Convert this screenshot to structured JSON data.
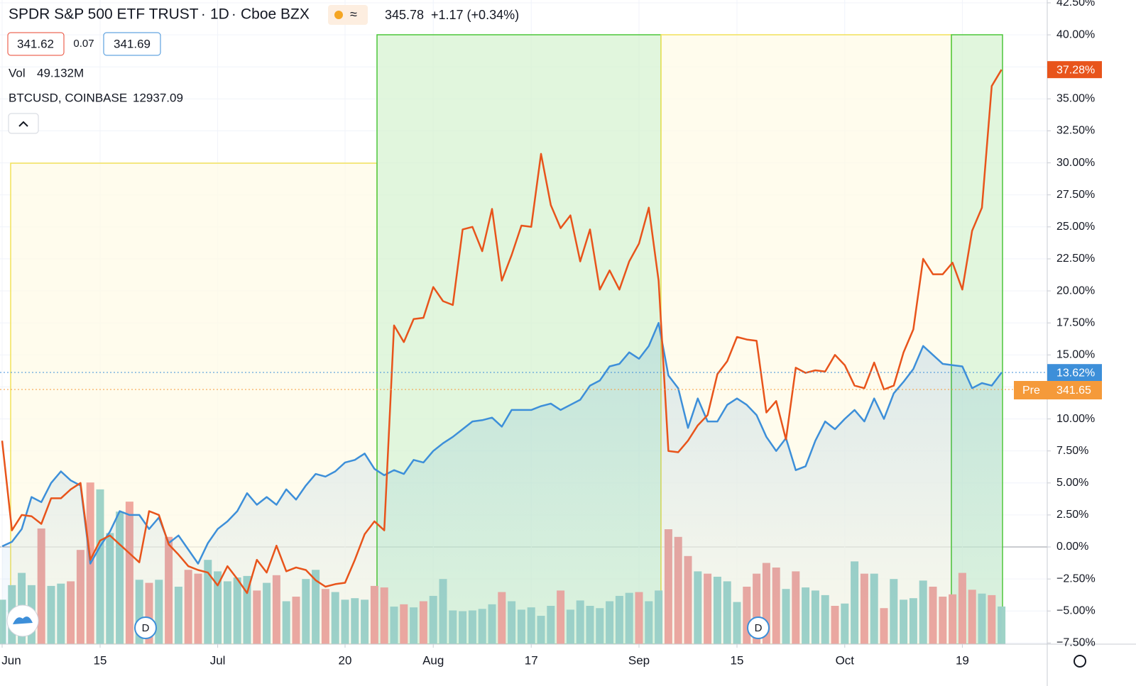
{
  "header": {
    "title": "SPDR S&P 500 ETF TRUST",
    "interval": "1D",
    "exchange": "Cboe BZX",
    "last": "345.78",
    "change": "+1.17 (+0.34%)",
    "bid": "341.62",
    "spread": "0.07",
    "ask": "341.69",
    "vol_label": "Vol",
    "vol_value": "49.132M",
    "compare_symbol": "BTCUSD, COINBASE",
    "compare_value": "12937.09",
    "pre_label": "Pre",
    "pre_value": "341.65"
  },
  "chart_data": {
    "type": "line",
    "series": [
      {
        "name": "SPDR S&P 500 ETF TRUST",
        "color": "#3d8fd9",
        "last_value_label": "13.62%",
        "values": [
          0.05,
          0.4,
          1.4,
          3.9,
          3.5,
          5.0,
          5.9,
          5.2,
          4.8,
          -1.3,
          0.05,
          1.2,
          2.8,
          2.5,
          2.5,
          1.4,
          2.3,
          0.3,
          0.9,
          -0.2,
          -1.3,
          0.3,
          1.4,
          2.0,
          2.8,
          4.2,
          3.3,
          3.9,
          3.3,
          4.5,
          3.7,
          4.8,
          5.7,
          5.5,
          5.9,
          6.6,
          6.8,
          7.3,
          6.1,
          5.6,
          6.0,
          5.7,
          6.8,
          6.6,
          7.5,
          8.1,
          8.6,
          9.2,
          9.8,
          9.9,
          10.1,
          9.4,
          10.7,
          10.7,
          10.7,
          11.0,
          11.2,
          10.7,
          11.1,
          11.5,
          12.6,
          13.0,
          14.1,
          14.3,
          15.2,
          14.7,
          15.7,
          17.5,
          13.4,
          12.4,
          9.3,
          11.6,
          9.8,
          9.8,
          11.1,
          11.6,
          11.1,
          10.3,
          8.6,
          7.5,
          8.5,
          6.0,
          6.3,
          8.3,
          9.8,
          9.2,
          10.0,
          10.7,
          9.8,
          11.6,
          10.0,
          12.0,
          12.9,
          13.9,
          15.7,
          15.0,
          14.3,
          14.2,
          14.1,
          12.4,
          12.8,
          12.6,
          13.62
        ]
      },
      {
        "name": "BTCUSD, COINBASE",
        "color": "#e8541b",
        "last_value_label": "37.28%",
        "values": [
          8.3,
          1.3,
          2.5,
          2.4,
          1.8,
          3.8,
          3.8,
          4.5,
          5.0,
          -1.0,
          0.5,
          0.9,
          0.2,
          -0.5,
          -1.2,
          2.8,
          2.5,
          0.2,
          -0.6,
          -1.5,
          -1.8,
          -2.0,
          -3.0,
          -1.5,
          -2.5,
          -3.6,
          -1.0,
          -2.0,
          0.1,
          -1.9,
          -1.6,
          -1.8,
          -2.6,
          -3.1,
          -2.9,
          -2.8,
          -1.0,
          1.0,
          2.0,
          1.3,
          17.3,
          16.0,
          17.8,
          17.9,
          20.3,
          19.2,
          18.9,
          24.8,
          25.0,
          23.1,
          26.4,
          20.8,
          22.8,
          25.1,
          25.0,
          30.7,
          26.7,
          24.9,
          25.9,
          22.3,
          24.8,
          20.1,
          21.6,
          20.1,
          22.3,
          23.7,
          26.5,
          20.8,
          7.5,
          7.4,
          8.3,
          9.5,
          10.3,
          13.5,
          14.5,
          16.4,
          16.2,
          16.1,
          10.5,
          11.4,
          8.4,
          14.0,
          13.6,
          13.8,
          13.7,
          15.0,
          14.2,
          12.6,
          12.4,
          14.4,
          12.3,
          12.6,
          15.2,
          17.0,
          22.5,
          21.3,
          21.3,
          22.2,
          20.1,
          24.7,
          26.5,
          36.0,
          37.28
        ]
      }
    ],
    "volume": {
      "name": "Vol",
      "up_color": "#9fd3c7",
      "down_color": "#f0a89e",
      "values": [
        58,
        77,
        93,
        77,
        151,
        76,
        79,
        82,
        123,
        211,
        202,
        145,
        173,
        186,
        84,
        80,
        84,
        140,
        75,
        97,
        92,
        110,
        95,
        82,
        87,
        89,
        70,
        80,
        90,
        56,
        62,
        85,
        97,
        72,
        68,
        58,
        60,
        58,
        76,
        74,
        49,
        52,
        48,
        56,
        63,
        85,
        44,
        43,
        44,
        46,
        52,
        68,
        56,
        45,
        48,
        37,
        50,
        70,
        45,
        57,
        50,
        47,
        56,
        63,
        67,
        68,
        56,
        70,
        150,
        140,
        115,
        95,
        92,
        88,
        82,
        55,
        75,
        92,
        106,
        100,
        72,
        95,
        74,
        70,
        64,
        50,
        53,
        108,
        92,
        92,
        47,
        85,
        58,
        60,
        83,
        75,
        62,
        65,
        93,
        71,
        66,
        64,
        49.132
      ]
    },
    "ylim": [
      -7.59,
      42.72
    ],
    "yticks": [
      {
        "value": -7.5,
        "label": "−7.50%"
      },
      {
        "value": -5,
        "label": "−5.00%"
      },
      {
        "value": -2.5,
        "label": "−2.50%"
      },
      {
        "value": 0,
        "label": "0.00%"
      },
      {
        "value": 2.5,
        "label": "2.50%"
      },
      {
        "value": 5,
        "label": "5.00%"
      },
      {
        "value": 7.5,
        "label": "7.50%"
      },
      {
        "value": 10,
        "label": "10.00%"
      },
      {
        "value": 12.5,
        "label": "12.50%"
      },
      {
        "value": 15,
        "label": "15.00%"
      },
      {
        "value": 17.5,
        "label": "17.50%"
      },
      {
        "value": 20,
        "label": "20.00%"
      },
      {
        "value": 22.5,
        "label": "22.50%"
      },
      {
        "value": 25,
        "label": "25.00%"
      },
      {
        "value": 27.5,
        "label": "27.50%"
      },
      {
        "value": 30,
        "label": "30.00%"
      },
      {
        "value": 32.5,
        "label": "32.50%"
      },
      {
        "value": 35,
        "label": "35.00%"
      },
      {
        "value": 37.5,
        "label": "37.50%"
      },
      {
        "value": 40,
        "label": "40.00%"
      },
      {
        "value": 42.5,
        "label": "42.50%"
      }
    ],
    "xticks": [
      {
        "value": 0,
        "label": "Jun"
      },
      {
        "value": 10,
        "label": "15"
      },
      {
        "value": 22,
        "label": "Jul"
      },
      {
        "value": 35,
        "label": "20"
      },
      {
        "value": 44,
        "label": "Aug"
      },
      {
        "value": 54,
        "label": "17"
      },
      {
        "value": 65,
        "label": "Sep"
      },
      {
        "value": 75,
        "label": "15"
      },
      {
        "value": 86,
        "label": "Oct"
      },
      {
        "value": 98,
        "label": "19"
      }
    ],
    "grid": true
  }
}
